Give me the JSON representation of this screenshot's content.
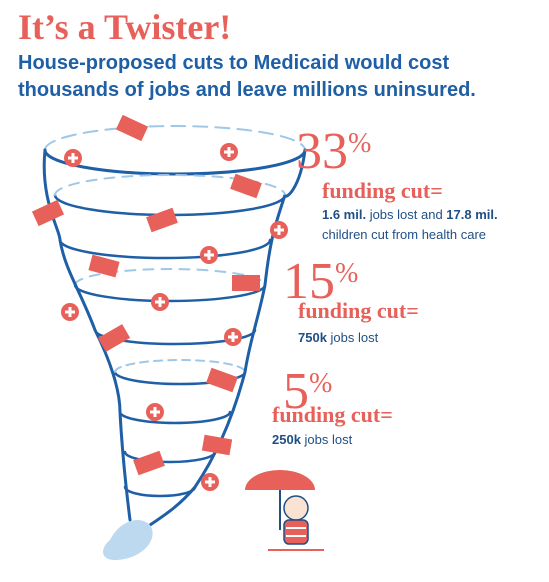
{
  "title": "It’s a Twister!",
  "subtitle": "House-proposed cuts to Medicaid would cost thousands of jobs and leave millions uninsured.",
  "items": [
    {
      "number": "33",
      "sign": "%",
      "label": "funding cut=",
      "detail": [
        {
          "text": "1.6 mil.",
          "bold": true
        },
        {
          "text": " jobs lost and ",
          "bold": false
        },
        {
          "text": "17.8 mil.",
          "bold": true
        },
        {
          "text": " children cut from health care",
          "bold": false
        }
      ]
    },
    {
      "number": "15",
      "sign": "%",
      "label": "funding cut=",
      "detail": [
        {
          "text": "750k",
          "bold": true
        },
        {
          "text": " jobs lost",
          "bold": false
        }
      ]
    },
    {
      "number": "5",
      "sign": "%",
      "label": "funding cut=",
      "detail": [
        {
          "text": "250k",
          "bold": true
        },
        {
          "text": " jobs lost",
          "bold": false
        }
      ]
    }
  ]
}
